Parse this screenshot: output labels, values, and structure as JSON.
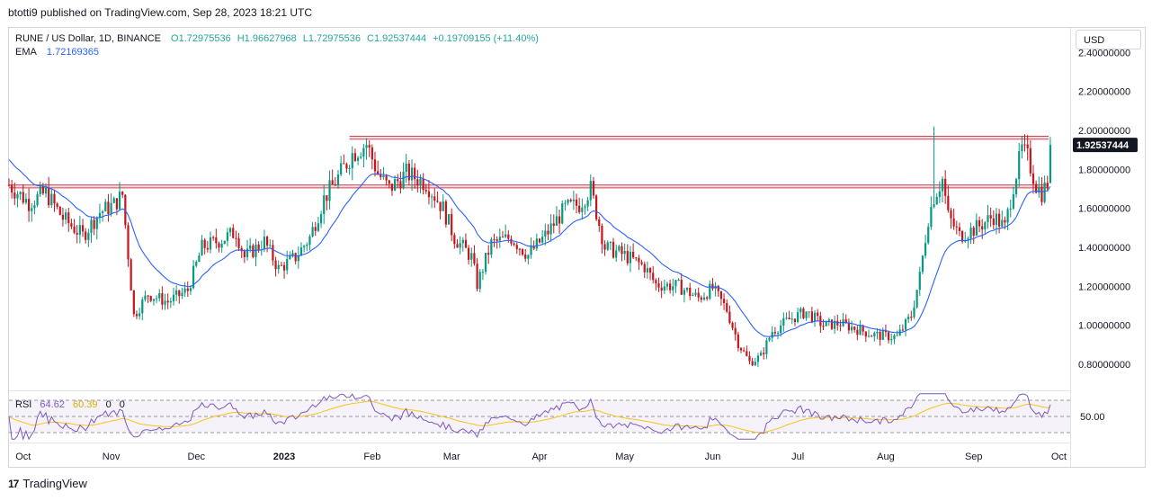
{
  "caption": "btotti9 published on TradingView.com, Sep 28, 2023 18:21 UTC",
  "legend": {
    "symbol": "RUNE / US Dollar, 1D, BINANCE",
    "open": "O1.72975536",
    "high": "H1.96627968",
    "low": "L1.72975536",
    "close": "C1.92537444",
    "change": "+0.19709155 (+11.40%)",
    "ema_label": "EMA",
    "ema_value": "1.72169365"
  },
  "rsi_legend": {
    "name": "RSI",
    "value1": "64.62",
    "value2": "60.39",
    "value3": "0",
    "value4": "0"
  },
  "currency_button": "USD",
  "footer": {
    "logo_text": "TradingView"
  },
  "colors": {
    "up": "#26a69a",
    "up_candle": "#089981",
    "down": "#c4161c",
    "ema": "#2962ff",
    "rsi": "#7e57c2",
    "rsi_ma": "#f5c518",
    "zone_line": "#c94a5a",
    "zone_fill": "#f0c8cf",
    "price_tag_bg": "#131722"
  },
  "chart_data": {
    "type": "candlestick",
    "title": "RUNE / US Dollar, 1D, BINANCE",
    "x_tick_labels": [
      "Oct",
      "Nov",
      "Dec",
      "2023",
      "Feb",
      "Mar",
      "Apr",
      "May",
      "Jun",
      "Jul",
      "Aug",
      "Sep",
      "Oct"
    ],
    "y_tick_labels": [
      "2.40000000",
      "2.20000000",
      "2.00000000",
      "1.80000000",
      "1.60000000",
      "1.40000000",
      "1.20000000",
      "1.00000000",
      "0.80000000"
    ],
    "y_ticks": [
      2.4,
      2.2,
      2.0,
      1.8,
      1.6,
      1.4,
      1.2,
      1.0,
      0.8
    ],
    "ylim": [
      0.7,
      2.45
    ],
    "current_price_label": "1.92537444",
    "current_price": 1.92537444,
    "resistance_zones": [
      {
        "low": 1.955,
        "high": 1.97
      },
      {
        "low": 1.705,
        "high": 1.72
      }
    ],
    "close_series": {
      "x_start": "2022-09-26",
      "interval_days": 1,
      "note_dates": "daily closes, estimated from chart",
      "anchors": [
        [
          "2022-09-26",
          1.72
        ],
        [
          "2022-10-03",
          1.63
        ],
        [
          "2022-10-09",
          1.68
        ],
        [
          "2022-10-15",
          1.55
        ],
        [
          "2022-10-22",
          1.46
        ],
        [
          "2022-10-28",
          1.58
        ],
        [
          "2022-11-02",
          1.62
        ],
        [
          "2022-11-05",
          1.67
        ],
        [
          "2022-11-09",
          1.05
        ],
        [
          "2022-11-14",
          1.16
        ],
        [
          "2022-11-21",
          1.12
        ],
        [
          "2022-11-28",
          1.18
        ],
        [
          "2022-12-03",
          1.4
        ],
        [
          "2022-12-10",
          1.44
        ],
        [
          "2022-12-15",
          1.48
        ],
        [
          "2022-12-18",
          1.35
        ],
        [
          "2022-12-25",
          1.43
        ],
        [
          "2022-12-30",
          1.29
        ],
        [
          "2023-01-05",
          1.35
        ],
        [
          "2023-01-10",
          1.45
        ],
        [
          "2023-01-15",
          1.65
        ],
        [
          "2023-01-20",
          1.76
        ],
        [
          "2023-01-25",
          1.88
        ],
        [
          "2023-01-30",
          1.93
        ],
        [
          "2023-02-03",
          1.78
        ],
        [
          "2023-02-07",
          1.7
        ],
        [
          "2023-02-13",
          1.78
        ],
        [
          "2023-02-20",
          1.73
        ],
        [
          "2023-02-26",
          1.6
        ],
        [
          "2023-03-02",
          1.45
        ],
        [
          "2023-03-08",
          1.35
        ],
        [
          "2023-03-10",
          1.21
        ],
        [
          "2023-03-15",
          1.42
        ],
        [
          "2023-03-22",
          1.45
        ],
        [
          "2023-03-28",
          1.36
        ],
        [
          "2023-04-03",
          1.46
        ],
        [
          "2023-04-10",
          1.6
        ],
        [
          "2023-04-15",
          1.62
        ],
        [
          "2023-04-19",
          1.7
        ],
        [
          "2023-04-21",
          1.58
        ],
        [
          "2023-04-24",
          1.4
        ],
        [
          "2023-05-01",
          1.36
        ],
        [
          "2023-05-08",
          1.3
        ],
        [
          "2023-05-12",
          1.21
        ],
        [
          "2023-05-20",
          1.2
        ],
        [
          "2023-05-27",
          1.14
        ],
        [
          "2023-06-01",
          1.19
        ],
        [
          "2023-06-06",
          1.08
        ],
        [
          "2023-06-10",
          0.91
        ],
        [
          "2023-06-14",
          0.81
        ],
        [
          "2023-06-18",
          0.84
        ],
        [
          "2023-06-22",
          0.97
        ],
        [
          "2023-06-28",
          1.03
        ],
        [
          "2023-07-04",
          1.07
        ],
        [
          "2023-07-10",
          1.0
        ],
        [
          "2023-07-16",
          1.01
        ],
        [
          "2023-07-22",
          0.98
        ],
        [
          "2023-07-28",
          0.95
        ],
        [
          "2023-08-05",
          0.94
        ],
        [
          "2023-08-10",
          1.05
        ],
        [
          "2023-08-13",
          1.25
        ],
        [
          "2023-08-16",
          1.55
        ],
        [
          "2023-08-18",
          1.66
        ],
        [
          "2023-08-21",
          1.75
        ],
        [
          "2023-08-23",
          1.56
        ],
        [
          "2023-08-27",
          1.46
        ],
        [
          "2023-09-02",
          1.5
        ],
        [
          "2023-09-08",
          1.56
        ],
        [
          "2023-09-12",
          1.5
        ],
        [
          "2023-09-15",
          1.72
        ],
        [
          "2023-09-18",
          1.9
        ],
        [
          "2023-09-20",
          1.86
        ],
        [
          "2023-09-23",
          1.72
        ],
        [
          "2023-09-25",
          1.68
        ],
        [
          "2023-09-27",
          1.73
        ],
        [
          "2023-09-28",
          1.925
        ]
      ]
    },
    "notable_wicks": [
      {
        "date": "2023-01-30",
        "high": 1.96
      },
      {
        "date": "2023-08-18",
        "high": 2.02
      },
      {
        "date": "2023-09-19",
        "high": 1.98
      },
      {
        "date": "2023-09-28",
        "high": 1.966
      }
    ],
    "rsi": {
      "name": "RSI",
      "value": 64.62,
      "ma_value": 60.39,
      "levels": [
        70,
        50,
        30
      ],
      "y_tick_labels": [
        "50.00"
      ]
    }
  }
}
